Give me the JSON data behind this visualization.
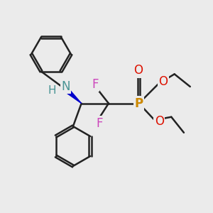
{
  "bg_color": "#ebebeb",
  "bond_color": "#222222",
  "bond_width": 1.8,
  "dbo": 0.055,
  "atom_colors": {
    "N": "#4a9494",
    "H": "#4a9494",
    "P": "#cc8800",
    "O": "#dd1100",
    "F": "#cc44bb",
    "C": "#222222",
    "wedge": "#0000cc"
  },
  "fs": 12
}
